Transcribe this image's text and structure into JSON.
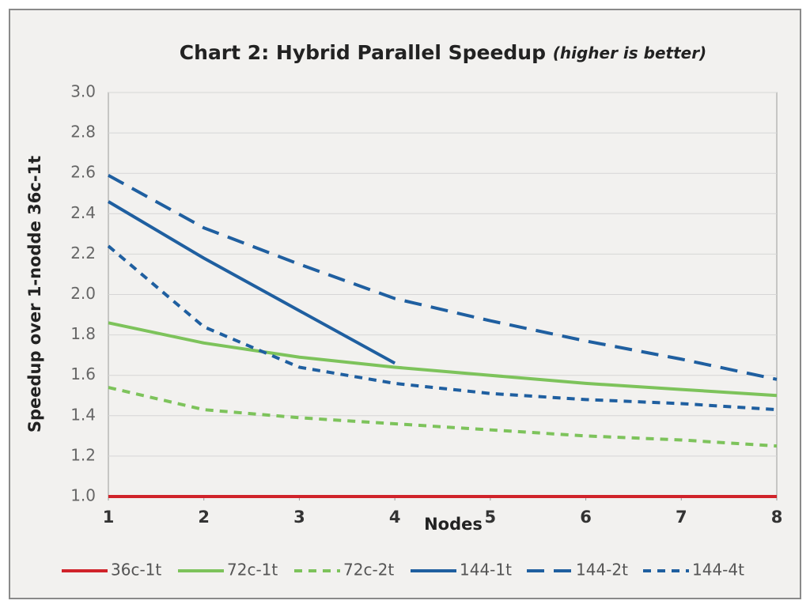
{
  "chart_data": {
    "type": "line",
    "title": "Chart 2: Hybrid Parallel Speedup",
    "subtitle": "(higher is better)",
    "x_label": "Nodes",
    "y_label": "Speedup over 1-nodde 36c-1t",
    "x": [
      1,
      2,
      3,
      4,
      5,
      6,
      7,
      8
    ],
    "xlim": [
      1,
      8
    ],
    "xticks": [
      1,
      2,
      3,
      4,
      5,
      6,
      7,
      8
    ],
    "ylim": [
      1,
      3
    ],
    "yticks": [
      {
        "value": 1,
        "label": "1.0"
      },
      1.2,
      1.4,
      1.6,
      1.8,
      {
        "value": 2,
        "label": "2.0"
      },
      2.2,
      2.4,
      2.6,
      2.8,
      {
        "value": 3,
        "label": "3.0"
      }
    ],
    "grid": true,
    "legend": "bottom",
    "series": [
      {
        "name": "36c-1t",
        "color": "#d0232a",
        "dash": "solid",
        "values": [
          1,
          1,
          1,
          1,
          1,
          1,
          1,
          1
        ]
      },
      {
        "name": "72c-1t",
        "color": "#7dc35b",
        "dash": "solid",
        "values": [
          1.86,
          1.76,
          1.69,
          1.64,
          1.6,
          1.56,
          1.53,
          1.5
        ]
      },
      {
        "name": "72c-2t",
        "color": "#7dc35b",
        "dash": "short",
        "values": [
          1.54,
          1.43,
          1.39,
          1.36,
          1.33,
          1.3,
          1.28,
          1.25
        ]
      },
      {
        "name": "144-1t",
        "color": "#1f5fa0",
        "dash": "solid",
        "values": [
          2.46,
          2.18,
          1.92,
          1.66,
          null,
          null,
          null,
          null
        ]
      },
      {
        "name": "144-2t",
        "color": "#1f5fa0",
        "dash": "long",
        "values": [
          2.59,
          2.33,
          2.15,
          1.98,
          1.87,
          1.77,
          1.68,
          1.58
        ]
      },
      {
        "name": "144-4t",
        "color": "#1f5fa0",
        "dash": "short",
        "values": [
          2.24,
          1.84,
          1.64,
          1.56,
          1.51,
          1.48,
          1.46,
          1.43
        ]
      }
    ]
  }
}
